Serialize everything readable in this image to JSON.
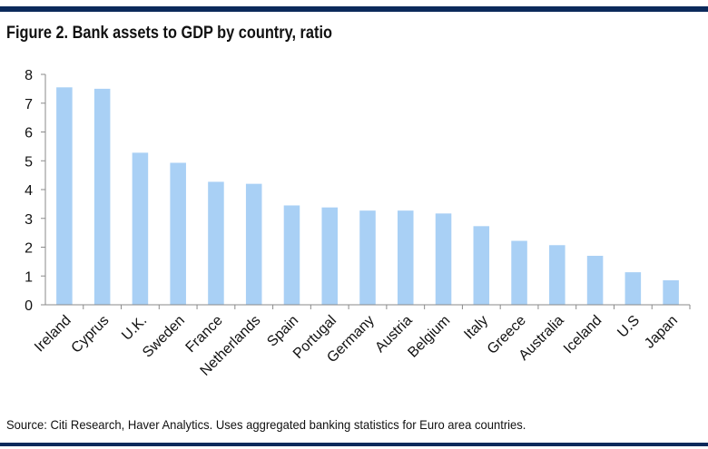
{
  "figure": {
    "title": "Figure 2. Bank assets to GDP by country, ratio",
    "source": "Source: Citi Research, Haver Analytics. Uses aggregated banking statistics for Euro area countries."
  },
  "colors": {
    "bar": "#a9d0f5",
    "rule": "#0b2a5b",
    "axis": "#8a8a8a"
  },
  "chart_data": {
    "type": "bar",
    "title": "Figure 2. Bank assets to GDP by country, ratio",
    "xlabel": "",
    "ylabel": "",
    "ylim": [
      0,
      8
    ],
    "yticks": [
      0,
      1,
      2,
      3,
      4,
      5,
      6,
      7,
      8
    ],
    "grid": false,
    "legend": "none",
    "categories": [
      "Ireland",
      "Cyprus",
      "U.K.",
      "Sweden",
      "France",
      "Netherlands",
      "Spain",
      "Portugal",
      "Germany",
      "Austria",
      "Belgium",
      "Italy",
      "Greece",
      "Australia",
      "Iceland",
      "U.S",
      "Japan"
    ],
    "values": [
      7.55,
      7.5,
      5.28,
      4.93,
      4.27,
      4.2,
      3.45,
      3.38,
      3.27,
      3.27,
      3.17,
      2.73,
      2.22,
      2.07,
      1.7,
      1.13,
      0.85
    ]
  }
}
